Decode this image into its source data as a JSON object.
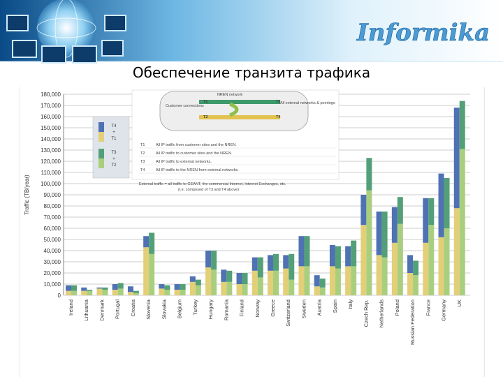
{
  "slide": {
    "title": "Обеспечение транзита трафика",
    "logo_text": "Informika"
  },
  "colors": {
    "t4t1": "#4f72b3",
    "t3t2": "#53a078",
    "t1": "#e2cf78",
    "t2": "#a9cf7e",
    "grid": "#9a9a9a",
    "banner_dark": "#0a4a86",
    "banner_light": "#bfe6f8"
  },
  "chart_data": {
    "type": "bar",
    "ylabel": "Traffic (TB/year)",
    "ylim": [
      0,
      180000
    ],
    "yticks": [
      "0",
      "10,000",
      "20,000",
      "30,000",
      "40,000",
      "50,000",
      "60,000",
      "70,000",
      "80,000",
      "90,000",
      "100,000",
      "110,000",
      "120,000",
      "130,000",
      "140,000",
      "150,000",
      "160,000",
      "170,000",
      "180,000"
    ],
    "grid": true,
    "legend_position": "top-left",
    "legend": [
      {
        "lines": [
          "T4",
          "+",
          "T1"
        ],
        "colors": [
          "#4f72b3",
          "#e2cf78"
        ]
      },
      {
        "lines": [
          "T3",
          "+",
          "T2"
        ],
        "colors": [
          "#53a078",
          "#a9cf7e"
        ]
      }
    ],
    "categories": [
      "Ireland",
      "Lithuania",
      "Denmark",
      "Portugal",
      "Croatia",
      "Slovenia",
      "Slovakia",
      "Belgium",
      "Turkey",
      "Hungary",
      "Romania",
      "Finland",
      "Norway",
      "Greece",
      "Switzerland",
      "Sweden",
      "Austria",
      "Spain",
      "Italy",
      "Czech Rep.",
      "Netherlands",
      "Poland",
      "Russian Federation",
      "France",
      "Germany",
      "UK"
    ],
    "series": [
      {
        "stack": "T4+T1",
        "part": "T1",
        "values": [
          4000,
          4000,
          6000,
          5000,
          3000,
          43000,
          6000,
          5000,
          12000,
          25000,
          12000,
          10000,
          22000,
          22000,
          24000,
          26000,
          8000,
          26000,
          26000,
          63000,
          36000,
          47000,
          20000,
          47000,
          52000,
          78000
        ]
      },
      {
        "stack": "T4+T1",
        "part": "T4",
        "values": [
          5000,
          3000,
          1000,
          5000,
          5000,
          10000,
          4000,
          5000,
          5000,
          15000,
          11000,
          10000,
          12000,
          14000,
          12000,
          27000,
          10000,
          19000,
          18000,
          27000,
          39000,
          32000,
          16000,
          40000,
          57000,
          90000
        ]
      },
      {
        "stack": "T3+T2",
        "part": "T2",
        "values": [
          4000,
          4000,
          5000,
          6000,
          2000,
          37000,
          5000,
          5000,
          9000,
          23000,
          12000,
          10000,
          16000,
          22000,
          14000,
          26000,
          7000,
          24000,
          26000,
          94000,
          34000,
          64000,
          18000,
          63000,
          60000,
          131000
        ]
      },
      {
        "stack": "T3+T2",
        "part": "T3",
        "values": [
          5000,
          1000,
          2000,
          5000,
          2000,
          19000,
          4000,
          5000,
          5000,
          17000,
          10000,
          10000,
          18000,
          15000,
          23000,
          27000,
          8000,
          20000,
          23000,
          29000,
          41000,
          24000,
          13000,
          24000,
          45000,
          43000
        ]
      }
    ],
    "inset": {
      "nren_network": "NREN network",
      "customer_connections": "Customer connections",
      "all_external": "All external networks & peerings",
      "arrows": [
        "T1",
        "T2",
        "T3",
        "T4"
      ],
      "definitions": [
        {
          "key": "T1",
          "text": "All IP traffic from customer sites and the NREN."
        },
        {
          "key": "T2",
          "text": "All IP traffic to customer sites and the NREN."
        },
        {
          "key": "T3",
          "text": "All IP traffic to external networks."
        },
        {
          "key": "T4",
          "text": "All IP traffic to the NREN from external networks."
        }
      ],
      "note_line1": "External traffic = all traffic to GEANT, the commercial Internet, Internet Exchanges, etc.",
      "note_line2": "(i.e. composed of T3 and T4 above)"
    }
  }
}
